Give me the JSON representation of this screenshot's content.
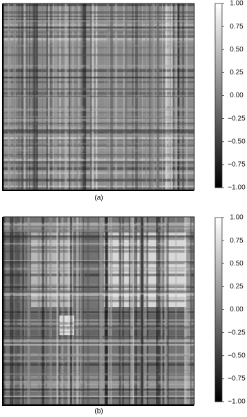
{
  "chart_data": [
    {
      "type": "heatmap",
      "caption": "(a)",
      "colorbar_lim": [
        -1,
        1
      ],
      "colorbar_ticks": [
        {
          "value": 1,
          "label": "1.00"
        },
        {
          "value": 0.75,
          "label": "0.75"
        },
        {
          "value": 0.5,
          "label": "0.50"
        },
        {
          "value": 0.25,
          "label": "0.25"
        },
        {
          "value": 0,
          "label": "0.00"
        },
        {
          "value": -0.25,
          "label": "−0.25"
        },
        {
          "value": -0.5,
          "label": "−0.50"
        },
        {
          "value": -0.75,
          "label": "−0.75"
        },
        {
          "value": -1,
          "label": "−1.00"
        }
      ]
    },
    {
      "type": "heatmap",
      "caption": "(b)",
      "colorbar_lim": [
        -1,
        1
      ],
      "colorbar_ticks": [
        {
          "value": 1,
          "label": "1.00"
        },
        {
          "value": 0.75,
          "label": "0.75"
        },
        {
          "value": 0.5,
          "label": "0.50"
        },
        {
          "value": 0.25,
          "label": "0.25"
        },
        {
          "value": 0,
          "label": "0.00"
        },
        {
          "value": -0.25,
          "label": "−0.25"
        },
        {
          "value": -0.5,
          "label": "−0.50"
        },
        {
          "value": -0.75,
          "label": "−0.75"
        },
        {
          "value": -1,
          "label": "−1.00"
        }
      ]
    }
  ]
}
